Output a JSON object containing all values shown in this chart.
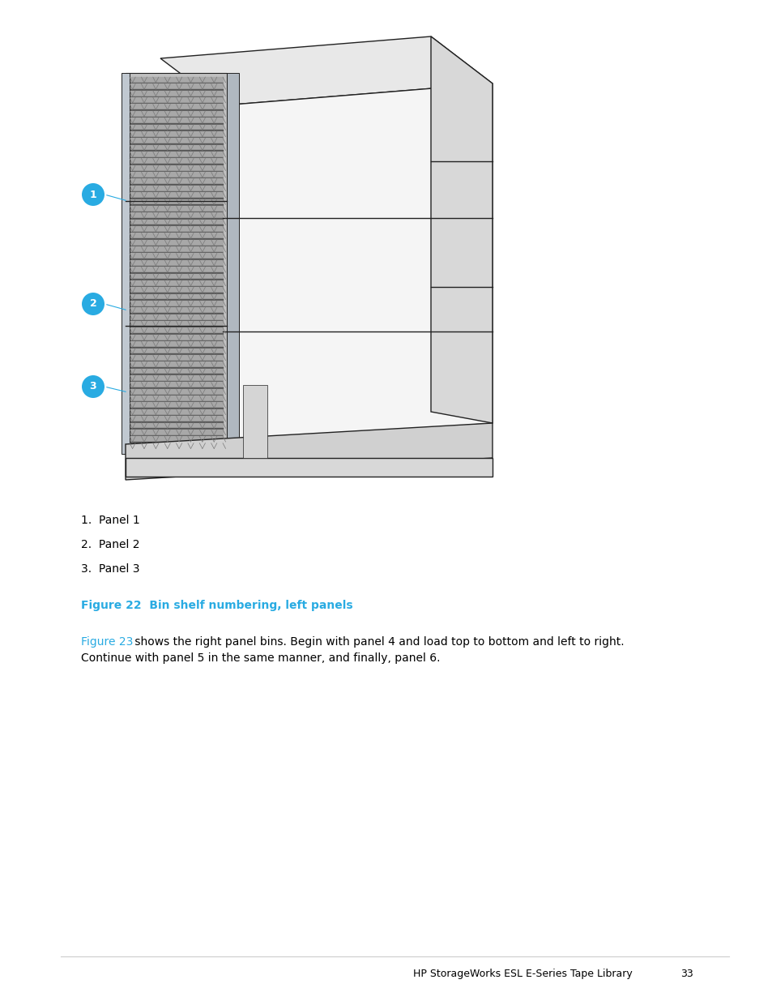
{
  "bg_color": "#ffffff",
  "callout_color": "#29ABE2",
  "list_items": [
    "1.  Panel 1",
    "2.  Panel 2",
    "3.  Panel 3"
  ],
  "figure_caption": "Figure 22  Bin shelf numbering, left panels",
  "figure_caption_color": "#29ABE2",
  "body_text_link": "Figure 23",
  "body_text_rest": " shows the right panel bins. Begin with panel 4 and load top to bottom and left to right.",
  "body_text_line2": "Continue with panel 5 in the same manner, and finally, panel 6.",
  "body_text_link_color": "#29ABE2",
  "body_text_color": "#000000",
  "footer_text": "HP StorageWorks ESL E-Series Tape Library",
  "footer_page": "33",
  "font_size_list": 10,
  "font_size_caption": 10,
  "font_size_body": 10,
  "font_size_footer": 9,
  "dark_color": "#222222",
  "med_gray": "#888888",
  "light_gray": "#e8e8e8",
  "cabinet_top_color": "#e8e8e8",
  "cabinet_front_color": "#f5f5f5",
  "cabinet_side_color": "#d8d8d8",
  "bin_bg_color": "#b8b8b8",
  "bin_slot_color": "#888888",
  "bin_slot_dark": "#666666"
}
